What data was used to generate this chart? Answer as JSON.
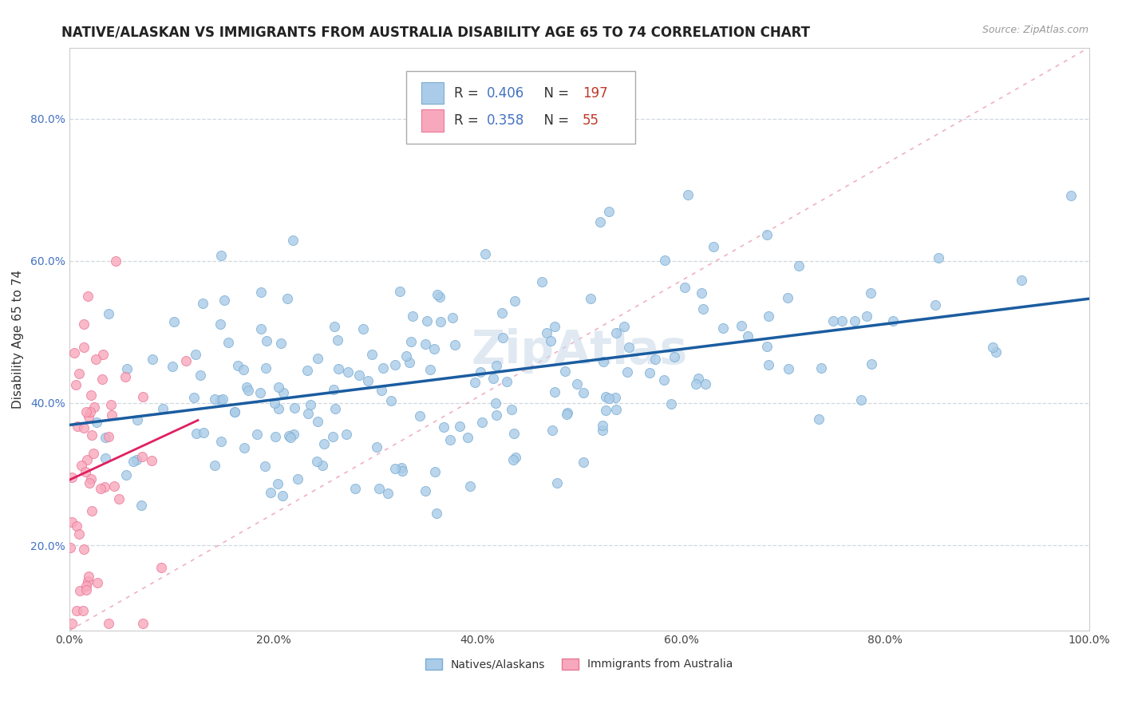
{
  "title": "NATIVE/ALASKAN VS IMMIGRANTS FROM AUSTRALIA DISABILITY AGE 65 TO 74 CORRELATION CHART",
  "source": "Source: ZipAtlas.com",
  "ylabel": "Disability Age 65 to 74",
  "xlim": [
    0.0,
    1.0
  ],
  "ylim": [
    0.08,
    0.9
  ],
  "xticks": [
    0.0,
    0.2,
    0.4,
    0.6,
    0.8,
    1.0
  ],
  "xticklabels": [
    "0.0%",
    "20.0%",
    "40.0%",
    "60.0%",
    "80.0%",
    "100.0%"
  ],
  "yticks": [
    0.2,
    0.4,
    0.6,
    0.8
  ],
  "yticklabels": [
    "20.0%",
    "40.0%",
    "60.0%",
    "80.0%"
  ],
  "blue_R": 0.406,
  "blue_N": 197,
  "pink_R": 0.358,
  "pink_N": 55,
  "blue_color": "#aacce8",
  "blue_edge": "#7aadd4",
  "pink_color": "#f8a8bc",
  "pink_edge": "#e87898",
  "blue_line_color": "#1a5ca0",
  "pink_line_color": "#e02060",
  "watermark": "ZipAtlas",
  "watermark_color": "#c8d8e8",
  "background_color": "#ffffff",
  "grid_color": "#d0d8e0",
  "title_fontsize": 12,
  "label_fontsize": 11,
  "tick_fontsize": 10,
  "legend_fontsize": 12,
  "blue_seed": 42,
  "pink_seed": 7
}
